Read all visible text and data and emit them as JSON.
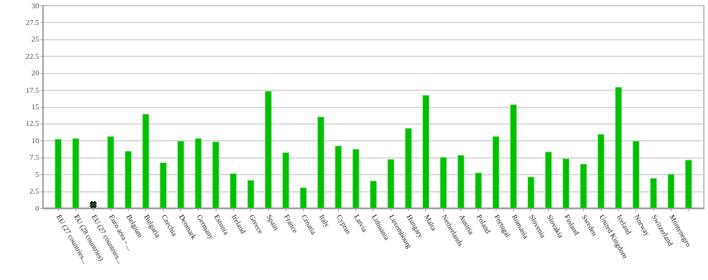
{
  "chart_data": {
    "type": "bar",
    "categories": [
      "EU (27 countries...",
      "EU (28 countries)",
      "EU (27 countries...",
      "Euro area - ...",
      "Belgium",
      "Bulgaria",
      "Czechia",
      "Denmark",
      "Germany",
      "Estonia",
      "Ireland",
      "Greece",
      "Spain",
      "France",
      "Croatia",
      "Italy",
      "Cyprus",
      "Latvia",
      "Lithuania",
      "Luxembourg",
      "Hungary",
      "Malta",
      "Netherlands",
      "Austria",
      "Poland",
      "Portugal",
      "Romania",
      "Slovenia",
      "Slovakia",
      "Finland",
      "Sweden",
      "United Kingdom",
      "Iceland",
      "Norway",
      "Switzerland",
      "Montenegro",
      null
    ],
    "values": [
      10.2,
      10.3,
      null,
      10.6,
      8.4,
      13.9,
      6.7,
      9.9,
      10.3,
      9.8,
      5.1,
      4.1,
      17.3,
      8.2,
      3.0,
      13.5,
      9.2,
      8.7,
      4.0,
      7.2,
      11.8,
      16.7,
      7.5,
      7.8,
      5.2,
      10.6,
      15.3,
      4.6,
      8.3,
      7.3,
      6.5,
      10.9,
      17.9,
      9.9,
      4.4,
      5.0,
      7.1
    ],
    "color": "#00c000",
    "ylim": [
      0,
      30
    ],
    "yticks": [
      0,
      2.5,
      5,
      7.5,
      10,
      12.5,
      15,
      17.5,
      20,
      22.5,
      25,
      27.5,
      30
    ],
    "grid": "y"
  }
}
